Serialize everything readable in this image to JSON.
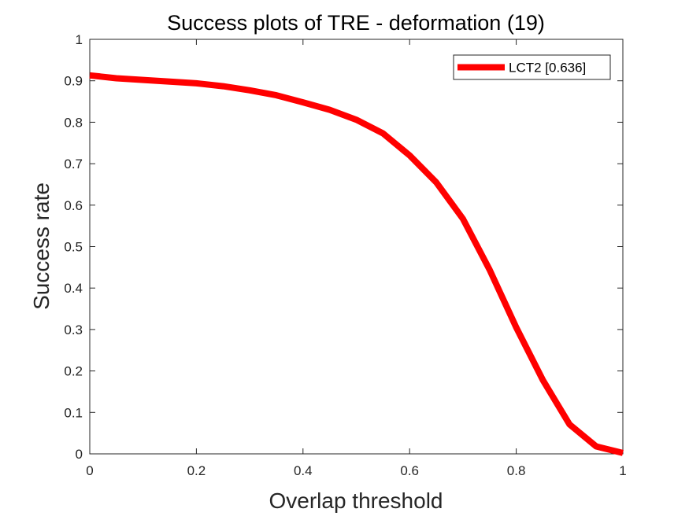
{
  "chart_data": {
    "type": "line",
    "title": "Success plots of TRE - deformation (19)",
    "xlabel": "Overlap threshold",
    "ylabel": "Success rate",
    "xlim": [
      0,
      1
    ],
    "ylim": [
      0,
      1
    ],
    "x_ticks": [
      "0",
      "0.2",
      "0.4",
      "0.6",
      "0.8",
      "1"
    ],
    "y_ticks": [
      "0",
      "0.1",
      "0.2",
      "0.3",
      "0.4",
      "0.5",
      "0.6",
      "0.7",
      "0.8",
      "0.9",
      "1"
    ],
    "grid": false,
    "legend_position": "top-right",
    "x": [
      0,
      0.05,
      0.1,
      0.15,
      0.2,
      0.25,
      0.3,
      0.35,
      0.4,
      0.45,
      0.5,
      0.55,
      0.6,
      0.65,
      0.7,
      0.75,
      0.8,
      0.85,
      0.9,
      0.95,
      1
    ],
    "series": [
      {
        "name": "LCT2 [0.636]",
        "color": "#ff0000",
        "values": [
          0.913,
          0.906,
          0.902,
          0.898,
          0.894,
          0.887,
          0.877,
          0.865,
          0.848,
          0.83,
          0.806,
          0.773,
          0.72,
          0.655,
          0.567,
          0.444,
          0.305,
          0.178,
          0.071,
          0.018,
          0.002
        ]
      }
    ]
  }
}
